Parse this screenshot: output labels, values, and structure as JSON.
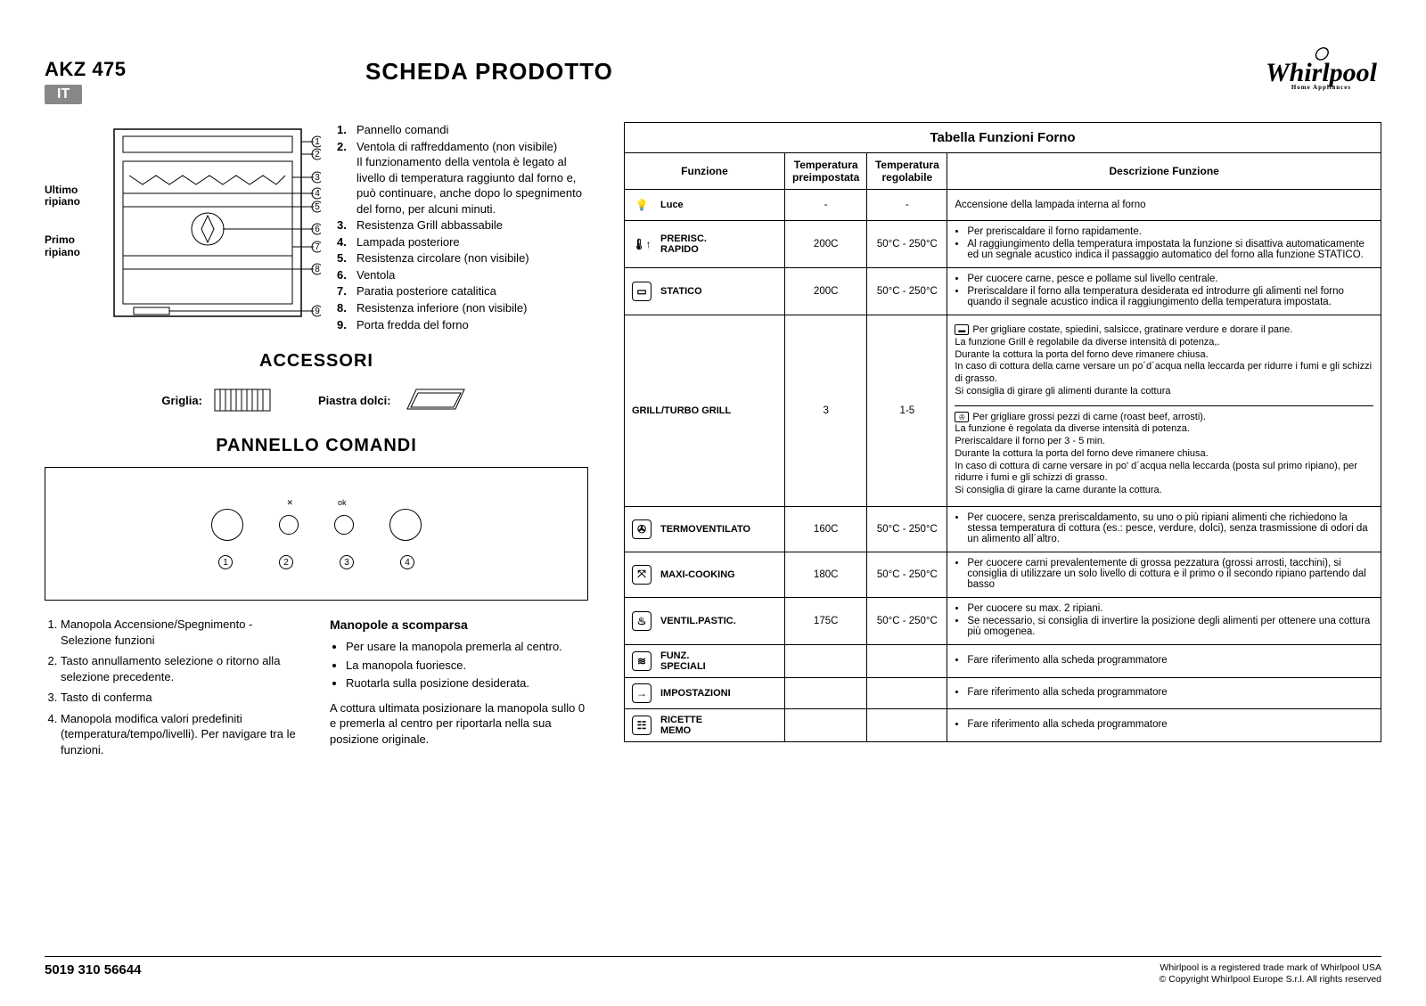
{
  "header": {
    "model": "AKZ 475",
    "lang": "IT",
    "title": "SCHEDA PRODOTTO",
    "brand": "Whirlpool",
    "brand_sub": "Home    Appliances"
  },
  "oven": {
    "left_labels": {
      "top": "Ultimo ripiano",
      "bottom": "Primo ripiano"
    },
    "callouts": [
      {
        "n": "1.",
        "text": "Pannello comandi"
      },
      {
        "n": "2.",
        "text": "Ventola di raffreddamento (non visibile)",
        "sub": "Il funzionamento della ventola è legato al livello di temperatura raggiunto dal forno e, può continuare, anche dopo lo spegnimento del forno, per alcuni minuti."
      },
      {
        "n": "3.",
        "text": "Resistenza Grill abbassabile"
      },
      {
        "n": "4.",
        "text": "Lampada posteriore"
      },
      {
        "n": "5.",
        "text": "Resistenza circolare (non visibile)"
      },
      {
        "n": "6.",
        "text": "Ventola"
      },
      {
        "n": "7.",
        "text": "Paratia posteriore catalitica"
      },
      {
        "n": "8.",
        "text": "Resistenza inferiore (non visibile)"
      },
      {
        "n": "9.",
        "text": "Porta fredda del forno"
      }
    ]
  },
  "accessories": {
    "title": "ACCESSORI",
    "items": [
      {
        "label": "Griglia:"
      },
      {
        "label": "Piastra dolci:"
      }
    ]
  },
  "panel": {
    "title": "PANNELLO COMANDI",
    "top_labels": [
      "",
      "✕",
      "ok",
      ""
    ],
    "nums": [
      "1",
      "2",
      "3",
      "4"
    ],
    "left_list": [
      "Manopola Accensione/Spegnimento - Selezione funzioni",
      "Tasto annullamento selezione o ritorno alla selezione precedente.",
      "Tasto di conferma",
      "Manopola modifica valori predefiniti (temperatura/tempo/livelli). Per navigare tra le funzioni."
    ],
    "right_head": "Manopole a scomparsa",
    "right_list": [
      "Per usare la manopola premerla al centro.",
      "La manopola fuoriesce.",
      "Ruotarla sulla posizione desiderata."
    ],
    "right_para": "A cottura ultimata posizionare la manopola sullo 0 e premerla al centro per riportarla nella sua posizione originale."
  },
  "table": {
    "caption": "Tabella Funzioni Forno",
    "headers": [
      "Funzione",
      "Temperatura preimpostata",
      "Temperatura regolabile",
      "Descrizione Funzione"
    ],
    "rows": [
      {
        "icon": "light",
        "name": "Luce",
        "preset": "-",
        "range": "-",
        "desc_plain": "Accensione della lampada interna al forno"
      },
      {
        "icon": "preheat",
        "name": "PRERISC. RAPIDO",
        "preset": "200C",
        "range": "50°C - 250°C",
        "desc_list": [
          "Per preriscaldare il forno rapidamente.",
          "Al raggiungimento della temperatura impostata la funzione si disattiva automaticamente ed un segnale acustico indica il passaggio automatico del forno alla funzione STATICO."
        ]
      },
      {
        "icon": "static",
        "name": "STATICO",
        "preset": "200C",
        "range": "50°C - 250°C",
        "desc_list": [
          "Per cuocere carne, pesce e pollame sul livello centrale.",
          "Preriscaldare il forno alla temperatura desiderata ed introdurre gli alimenti nel forno quando il segnale acustico indica il raggiungimento della temperatura impostata."
        ]
      },
      {
        "icon": "grill",
        "name": "GRILL/TURBO GRILL",
        "preset": "3",
        "range": "1-5",
        "grill_two_part": true,
        "part1": "Per grigliare costate, spiedini, salsicce, gratinare verdure e dorare il pane.\nLa funzione Grill è regolabile da diverse intensità di potenza,.\nDurante la cottura la porta del forno deve rimanere chiusa.\nIn caso di cottura della carne versare un po´d´acqua nella leccarda per ridurre i fumi e gli schizzi di grasso.\nSi consiglia di girare gli alimenti durante la cottura",
        "part2": "Per grigliare grossi pezzi di carne (roast beef, arrosti).\nLa funzione è regolata da diverse intensità di potenza.\nPreriscaldare il forno per 3 - 5 min.\nDurante la cottura la porta del forno deve rimanere chiusa.\nIn caso di cottura di carne versare in po' d´acqua nella leccarda (posta sul primo ripiano), per ridurre i fumi e gli schizzi di grasso.\nSi consiglia di girare la carne durante la cottura."
      },
      {
        "icon": "fan",
        "name": "TERMOVENTILATO",
        "preset": "160C",
        "range": "50°C - 250°C",
        "desc_list": [
          "Per cuocere, senza preriscaldamento, su uno o più ripiani alimenti che richiedono la stessa temperatura di cottura (es.: pesce, verdure, dolci), senza trasmissione di odori da un alimento all´altro."
        ]
      },
      {
        "icon": "maxi",
        "name": "MAXI-COOKING",
        "preset": "180C",
        "range": "50°C - 250°C",
        "desc_list": [
          "Per cuocere carni prevalentemente di grossa pezzatura (grossi arrosti, tacchini), si consiglia di utilizzare un solo livello di cottura e il primo o il secondo ripiano partendo dal basso"
        ]
      },
      {
        "icon": "pastry",
        "name": "VENTIL.PASTIC.",
        "preset": "175C",
        "range": "50°C - 250°C",
        "desc_list": [
          "Per cuocere su max. 2 ripiani.",
          "Se necessario, si consiglia di invertire la posizione degli alimenti per ottenere una cottura più omogenea."
        ]
      },
      {
        "icon": "special",
        "name": "FUNZ. SPECIALI",
        "preset": "",
        "range": "",
        "desc_list": [
          "Fare riferimento alla scheda programmatore"
        ]
      },
      {
        "icon": "settings",
        "name": "IMPOSTAZIONI",
        "preset": "",
        "range": "",
        "desc_list": [
          "Fare riferimento alla scheda programmatore"
        ]
      },
      {
        "icon": "memo",
        "name": "RICETTE MEMO",
        "preset": "",
        "range": "",
        "desc_list": [
          "Fare riferimento alla scheda programmatore"
        ]
      }
    ]
  },
  "footer": {
    "code": "5019 310 56644",
    "legal1": "Whirlpool is a registered trade mark of Whirlpool USA",
    "legal2": "© Copyright Whirlpool Europe S.r.l. All rights reserved"
  },
  "colors": {
    "text": "#000000",
    "bg": "#ffffff",
    "lang_bg": "#888888",
    "border": "#000000"
  }
}
